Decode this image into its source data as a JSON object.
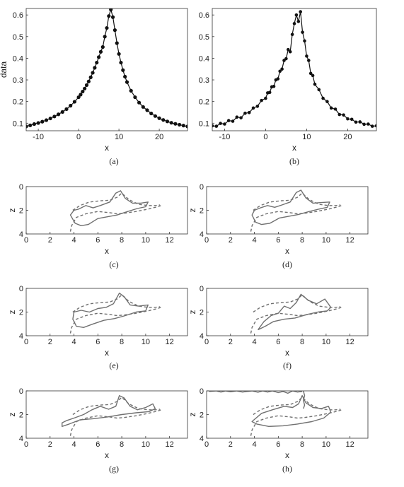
{
  "chart_data": [
    {
      "panel": "a",
      "caption": "(a)",
      "type": "scatter",
      "xlabel": "x",
      "ylabel": "data",
      "xlim": [
        -13,
        27
      ],
      "ylim": [
        0.065,
        0.63
      ],
      "xticks": [
        -10,
        0,
        10,
        20
      ],
      "yticks": [
        0.1,
        0.2,
        0.3,
        0.4,
        0.5,
        0.6
      ],
      "series": [
        {
          "x": [
            -13,
            -12,
            -11,
            -10,
            -9,
            -8,
            -7,
            -6,
            -5,
            -4,
            -3,
            -2,
            -1,
            0,
            0.5,
            1,
            1.5,
            2,
            2.5,
            3,
            3.5,
            4,
            4.5,
            5,
            5.5,
            6,
            6.5,
            7,
            7.5,
            8,
            8.5,
            9,
            9.5,
            10,
            10.5,
            11,
            11.5,
            12,
            13,
            14,
            15,
            16,
            17,
            18,
            19,
            20,
            21,
            22,
            23,
            24,
            25,
            26,
            27
          ],
          "y": [
            0.085,
            0.09,
            0.096,
            0.101,
            0.107,
            0.114,
            0.122,
            0.131,
            0.141,
            0.152,
            0.165,
            0.181,
            0.199,
            0.22,
            0.232,
            0.246,
            0.26,
            0.276,
            0.293,
            0.312,
            0.333,
            0.356,
            0.38,
            0.405,
            0.43,
            0.452,
            0.5,
            0.54,
            0.595,
            0.625,
            0.59,
            0.53,
            0.47,
            0.42,
            0.38,
            0.345,
            0.315,
            0.29,
            0.25,
            0.22,
            0.195,
            0.175,
            0.16,
            0.145,
            0.133,
            0.123,
            0.115,
            0.108,
            0.102,
            0.097,
            0.093,
            0.089,
            0.085
          ]
        }
      ]
    },
    {
      "panel": "b",
      "caption": "(b)",
      "type": "scatter",
      "xlabel": "x",
      "ylabel": "",
      "xlim": [
        -13,
        27
      ],
      "ylim": [
        0.065,
        0.63
      ],
      "xticks": [
        -10,
        0,
        10,
        20
      ],
      "yticks": [
        0.1,
        0.2,
        0.3,
        0.4,
        0.5,
        0.6
      ],
      "series": [
        {
          "x": [
            -13,
            -12,
            -11,
            -10,
            -9,
            -8,
            -7,
            -6,
            -5,
            -4,
            -3,
            -2,
            -1,
            0,
            0.5,
            1,
            1.5,
            2,
            2.5,
            3,
            3.5,
            4,
            4.5,
            5,
            5.5,
            6,
            6.5,
            7,
            7.5,
            8,
            8.5,
            9,
            9.5,
            10,
            10.5,
            11,
            11.5,
            12,
            13,
            14,
            15,
            16,
            17,
            18,
            19,
            20,
            21,
            22,
            23,
            24,
            25,
            26,
            27
          ],
          "y": [
            0.088,
            0.086,
            0.099,
            0.096,
            0.112,
            0.109,
            0.128,
            0.125,
            0.146,
            0.149,
            0.17,
            0.178,
            0.205,
            0.215,
            0.24,
            0.242,
            0.268,
            0.27,
            0.3,
            0.305,
            0.34,
            0.35,
            0.39,
            0.398,
            0.44,
            0.43,
            0.51,
            0.56,
            0.6,
            0.57,
            0.615,
            0.52,
            0.48,
            0.41,
            0.39,
            0.33,
            0.32,
            0.28,
            0.255,
            0.215,
            0.2,
            0.17,
            0.165,
            0.14,
            0.138,
            0.12,
            0.118,
            0.105,
            0.106,
            0.095,
            0.096,
            0.086,
            0.088
          ]
        }
      ]
    },
    {
      "panel": "c",
      "caption": "(c)",
      "type": "line",
      "xlabel": "x",
      "ylabel": "z",
      "xlim": [
        0,
        13.5
      ],
      "ylim": [
        4,
        0
      ],
      "xticks": [
        0,
        2,
        4,
        6,
        8,
        10,
        12
      ],
      "yticks": [
        0,
        2,
        4
      ],
      "series": [
        {
          "style": "solid",
          "x": [
            4.0,
            4.4,
            5.0,
            5.6,
            6.2,
            7.0,
            7.5,
            7.9,
            8.3,
            8.9,
            9.6,
            10.2,
            10.0,
            9.3,
            8.5,
            7.6,
            6.8,
            6.0,
            5.2,
            4.6,
            4.1,
            3.7,
            4.0
          ],
          "y": [
            2.0,
            1.9,
            1.6,
            1.8,
            1.6,
            1.3,
            0.55,
            0.35,
            1.0,
            1.4,
            1.4,
            1.3,
            1.7,
            1.85,
            2.1,
            2.4,
            2.55,
            2.7,
            3.2,
            3.3,
            3.1,
            2.4,
            2.0
          ]
        },
        {
          "style": "dashed",
          "x": [
            3.7,
            3.8,
            4.2,
            5.0,
            6.0,
            7.0,
            7.6,
            8.2,
            9.2,
            10.2,
            11.0,
            11.3
          ],
          "y": [
            3.8,
            3.3,
            2.6,
            2.3,
            2.1,
            2.2,
            2.3,
            2.25,
            2.1,
            1.9,
            1.7,
            1.6
          ]
        },
        {
          "style": "dashed",
          "x": [
            3.9,
            4.5,
            5.3,
            6.2,
            7.0,
            7.6,
            8.0,
            8.6,
            9.4,
            10.2,
            10.8,
            11.2
          ],
          "y": [
            2.0,
            1.6,
            1.3,
            1.2,
            1.15,
            0.9,
            0.55,
            1.1,
            1.5,
            1.6,
            1.6,
            1.55
          ]
        }
      ]
    },
    {
      "panel": "d",
      "caption": "(d)",
      "type": "line",
      "xlabel": "x",
      "ylabel": "z",
      "xlim": [
        0,
        13.5
      ],
      "ylim": [
        4,
        0
      ],
      "xticks": [
        0,
        2,
        4,
        6,
        8,
        10,
        12
      ],
      "yticks": [
        0,
        2,
        4
      ],
      "series": [
        {
          "style": "solid",
          "x": [
            4.0,
            4.5,
            5.1,
            5.7,
            6.3,
            7.0,
            7.5,
            7.9,
            8.3,
            8.9,
            9.6,
            10.3,
            10.1,
            9.4,
            8.6,
            7.7,
            6.9,
            6.1,
            5.3,
            4.6,
            4.1,
            3.8,
            4.0
          ],
          "y": [
            2.0,
            1.8,
            1.6,
            1.75,
            1.55,
            1.3,
            0.5,
            0.3,
            0.95,
            1.4,
            1.35,
            1.3,
            1.75,
            1.9,
            2.1,
            2.35,
            2.5,
            2.65,
            3.1,
            3.2,
            3.0,
            2.4,
            2.0
          ]
        },
        {
          "style": "dashed",
          "x": [
            3.7,
            3.8,
            4.2,
            5.0,
            6.0,
            7.0,
            7.6,
            8.2,
            9.2,
            10.2,
            11.0,
            11.3
          ],
          "y": [
            3.8,
            3.3,
            2.6,
            2.3,
            2.1,
            2.2,
            2.3,
            2.25,
            2.1,
            1.9,
            1.7,
            1.6
          ]
        },
        {
          "style": "dashed",
          "x": [
            3.9,
            4.5,
            5.3,
            6.2,
            7.0,
            7.6,
            8.0,
            8.6,
            9.4,
            10.2,
            10.8,
            11.2
          ],
          "y": [
            2.0,
            1.6,
            1.3,
            1.2,
            1.15,
            0.9,
            0.55,
            1.1,
            1.5,
            1.6,
            1.6,
            1.55
          ]
        }
      ]
    },
    {
      "panel": "e",
      "caption": "(e)",
      "type": "line",
      "xlabel": "x",
      "ylabel": "z",
      "xlim": [
        0,
        13.5
      ],
      "ylim": [
        4,
        0
      ],
      "xticks": [
        0,
        2,
        4,
        6,
        8,
        10,
        12
      ],
      "yticks": [
        0,
        2,
        4
      ],
      "series": [
        {
          "style": "solid",
          "x": [
            4.0,
            4.6,
            5.3,
            6.0,
            6.7,
            7.3,
            7.8,
            8.2,
            8.7,
            9.4,
            10.2,
            10.0,
            9.2,
            8.3,
            7.4,
            6.5,
            5.6,
            4.8,
            4.2,
            3.9,
            4.0
          ],
          "y": [
            2.0,
            1.85,
            2.0,
            1.7,
            1.6,
            1.3,
            0.4,
            0.7,
            1.4,
            1.5,
            1.4,
            1.9,
            2.0,
            2.3,
            2.55,
            2.7,
            3.0,
            3.3,
            3.2,
            2.6,
            2.0
          ]
        },
        {
          "style": "dashed",
          "x": [
            3.7,
            3.8,
            4.2,
            5.0,
            6.0,
            7.0,
            7.6,
            8.2,
            9.2,
            10.2,
            11.0,
            11.3
          ],
          "y": [
            3.8,
            3.3,
            2.6,
            2.3,
            2.1,
            2.2,
            2.3,
            2.25,
            2.1,
            1.9,
            1.7,
            1.6
          ]
        },
        {
          "style": "dashed",
          "x": [
            3.9,
            4.5,
            5.3,
            6.2,
            7.0,
            7.6,
            8.0,
            8.6,
            9.4,
            10.2,
            10.8,
            11.2
          ],
          "y": [
            2.0,
            1.6,
            1.3,
            1.2,
            1.15,
            0.9,
            0.55,
            1.1,
            1.5,
            1.6,
            1.6,
            1.55
          ]
        }
      ]
    },
    {
      "panel": "f",
      "caption": "(f)",
      "type": "line",
      "xlabel": "x",
      "ylabel": "z",
      "xlim": [
        0,
        13.5
      ],
      "ylim": [
        4,
        0
      ],
      "xticks": [
        0,
        2,
        4,
        6,
        8,
        10,
        12
      ],
      "yticks": [
        0,
        2,
        4
      ],
      "series": [
        {
          "style": "solid",
          "x": [
            4.3,
            4.8,
            5.4,
            6.0,
            6.5,
            7.0,
            7.5,
            7.9,
            8.5,
            9.2,
            9.9,
            10.4,
            10.1,
            9.3,
            8.4,
            7.4,
            6.5,
            5.6,
            4.9,
            4.3
          ],
          "y": [
            3.5,
            2.8,
            2.3,
            2.1,
            1.5,
            1.7,
            1.2,
            0.5,
            1.0,
            1.3,
            0.9,
            1.6,
            1.9,
            2.0,
            2.2,
            2.5,
            2.6,
            2.8,
            3.2,
            3.5
          ]
        },
        {
          "style": "dashed",
          "x": [
            3.7,
            3.8,
            4.2,
            5.0,
            6.0,
            7.0,
            7.6,
            8.2,
            9.2,
            10.2,
            11.0,
            11.3
          ],
          "y": [
            3.8,
            3.3,
            2.6,
            2.3,
            2.1,
            2.2,
            2.3,
            2.25,
            2.1,
            1.9,
            1.7,
            1.6
          ]
        },
        {
          "style": "dashed",
          "x": [
            3.9,
            4.5,
            5.3,
            6.2,
            7.0,
            7.6,
            8.0,
            8.6,
            9.4,
            10.2,
            10.8,
            11.2
          ],
          "y": [
            2.0,
            1.6,
            1.3,
            1.2,
            1.15,
            0.9,
            0.55,
            1.1,
            1.5,
            1.6,
            1.6,
            1.55
          ]
        }
      ]
    },
    {
      "panel": "g",
      "caption": "(g)",
      "type": "line",
      "xlabel": "x",
      "ylabel": "z",
      "xlim": [
        0,
        13.5
      ],
      "ylim": [
        4,
        0
      ],
      "xticks": [
        0,
        2,
        4,
        6,
        8,
        10,
        12
      ],
      "yticks": [
        0,
        2,
        4
      ],
      "series": [
        {
          "style": "solid",
          "x": [
            3.4,
            4.0,
            4.8,
            5.5,
            6.2,
            6.9,
            7.5,
            7.8,
            8.2,
            8.7,
            9.3,
            10.0,
            10.6,
            10.8,
            10.3,
            9.2,
            8.0,
            6.8,
            5.6,
            4.5,
            3.6,
            3.0,
            3.0,
            3.4
          ],
          "y": [
            2.5,
            2.3,
            2.0,
            1.6,
            1.3,
            1.55,
            1.3,
            0.4,
            0.6,
            1.3,
            1.6,
            1.4,
            1.1,
            1.5,
            1.75,
            1.85,
            2.0,
            2.2,
            2.35,
            2.45,
            2.8,
            3.0,
            2.7,
            2.5
          ]
        },
        {
          "style": "dashed",
          "x": [
            3.7,
            3.8,
            4.2,
            5.0,
            6.0,
            7.0,
            7.6,
            8.2,
            9.2,
            10.2,
            11.0,
            11.3
          ],
          "y": [
            3.8,
            3.3,
            2.6,
            2.3,
            2.1,
            2.2,
            2.3,
            2.25,
            2.1,
            1.9,
            1.7,
            1.6
          ]
        },
        {
          "style": "dashed",
          "x": [
            3.9,
            4.5,
            5.3,
            6.2,
            7.0,
            7.6,
            8.0,
            8.6,
            9.4,
            10.2,
            10.8,
            11.2
          ],
          "y": [
            2.0,
            1.6,
            1.3,
            1.2,
            1.15,
            0.9,
            0.55,
            1.1,
            1.5,
            1.6,
            1.6,
            1.55
          ]
        }
      ]
    },
    {
      "panel": "h",
      "caption": "(h)",
      "type": "line",
      "xlabel": "x",
      "ylabel": "z",
      "xlim": [
        0,
        13.5
      ],
      "ylim": [
        4,
        0
      ],
      "xticks": [
        0,
        2,
        4,
        6,
        8,
        10,
        12
      ],
      "yticks": [
        0,
        2,
        4
      ],
      "series": [
        {
          "style": "solid",
          "x": [
            3.9,
            4.6,
            5.5,
            6.5,
            7.2,
            7.7,
            8.0,
            8.3,
            8.9,
            9.6,
            10.2,
            10.4,
            9.8,
            8.8,
            7.6,
            6.4,
            5.2,
            4.2,
            3.8,
            3.9
          ],
          "y": [
            2.5,
            1.9,
            1.6,
            1.3,
            1.4,
            1.1,
            0.4,
            1.0,
            1.4,
            1.5,
            1.3,
            1.8,
            2.3,
            2.6,
            2.8,
            2.95,
            3.0,
            2.8,
            2.6,
            2.5
          ]
        },
        {
          "style": "solid",
          "x": [
            0.2,
            0.8,
            1.2,
            1.6,
            2.0,
            2.5,
            3.0,
            3.4,
            3.8,
            4.3,
            4.7,
            5.1,
            5.5,
            6.0,
            6.4,
            6.8,
            7.2,
            7.6,
            8.0
          ],
          "y": [
            0.05,
            0.0,
            0.1,
            0.0,
            0.08,
            0.0,
            0.1,
            0.05,
            0.0,
            0.12,
            0.0,
            0.1,
            0.0,
            0.15,
            0.05,
            0.2,
            0.0,
            0.1,
            0.05
          ]
        },
        {
          "style": "solid",
          "x": [
            8.1,
            8.2,
            8.1,
            8.2,
            8.1
          ],
          "y": [
            0.0,
            0.4,
            0.8,
            1.2,
            1.5
          ]
        },
        {
          "style": "dashed",
          "x": [
            3.7,
            3.8,
            4.2,
            5.0,
            6.0,
            7.0,
            7.6,
            8.2,
            9.2,
            10.2,
            11.0,
            11.3
          ],
          "y": [
            3.8,
            3.3,
            2.6,
            2.3,
            2.1,
            2.2,
            2.3,
            2.25,
            2.1,
            1.9,
            1.7,
            1.6
          ]
        },
        {
          "style": "dashed",
          "x": [
            3.9,
            4.5,
            5.3,
            6.2,
            7.0,
            7.6,
            8.0,
            8.6,
            9.4,
            10.2,
            10.8,
            11.2
          ],
          "y": [
            2.0,
            1.6,
            1.3,
            1.2,
            1.15,
            0.9,
            0.55,
            1.1,
            1.5,
            1.6,
            1.6,
            1.55
          ]
        }
      ]
    }
  ]
}
